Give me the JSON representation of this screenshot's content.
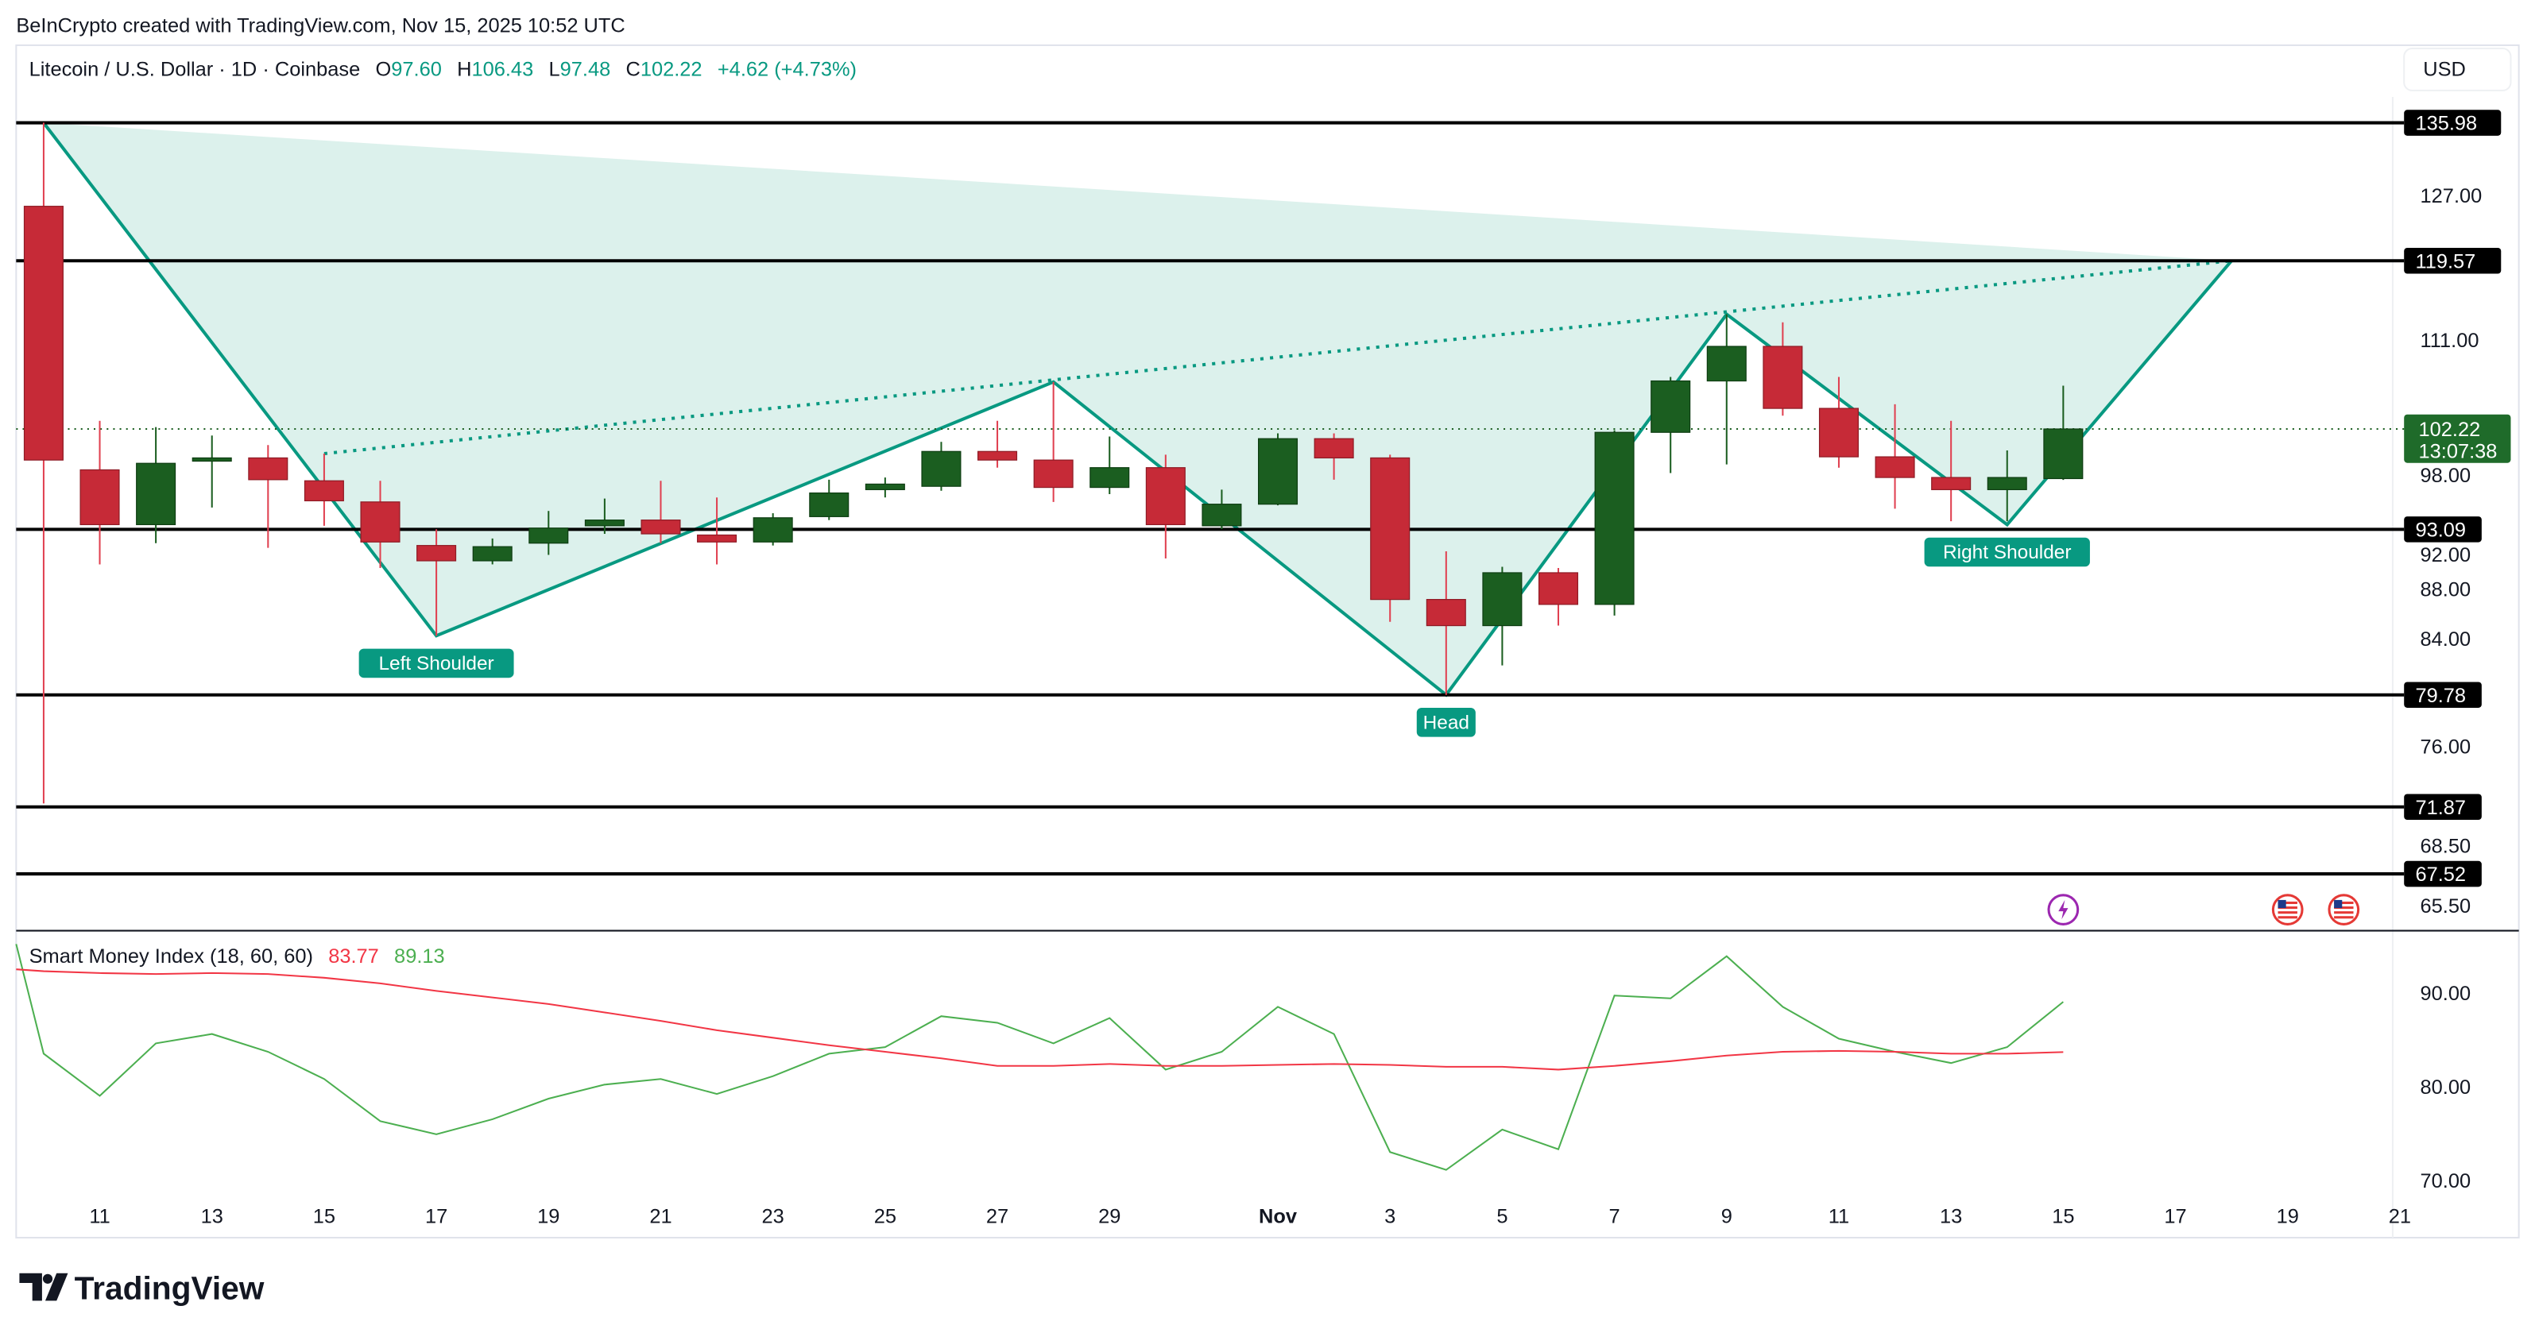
{
  "watermark": "BeInCrypto created with TradingView.com, Nov 15, 2025 10:52 UTC",
  "legend": {
    "symbol": "Litecoin / U.S. Dollar · 1D · Coinbase",
    "o_label": "O",
    "o": "97.60",
    "h_label": "H",
    "h": "106.43",
    "l_label": "L",
    "l": "97.48",
    "c_label": "C",
    "c": "102.22",
    "change": "+4.62 (+4.73%)"
  },
  "currency_button": "USD",
  "last_price": {
    "value": "102.22",
    "countdown": "13:07:38"
  },
  "brand": "TradingView",
  "colors": {
    "up": "#1b5e20",
    "down": "#c62a37",
    "pattern": "#089981",
    "pattern_fill": "#d8f0ea",
    "smi": "#4caf50",
    "signal": "#f23645"
  },
  "chart_data": [
    {
      "type": "candlestick",
      "y_scale": "log",
      "ylim": [
        64,
        140
      ],
      "y_ticks": [
        "127.00",
        "111.00",
        "98.00",
        "92.00",
        "88.00",
        "84.00",
        "76.00",
        "68.50",
        "65.50"
      ],
      "x_ticks": [
        "11",
        "13",
        "15",
        "17",
        "19",
        "21",
        "23",
        "25",
        "27",
        "29",
        "Nov",
        "3",
        "5",
        "7",
        "9",
        "11",
        "13",
        "15",
        "17",
        "19",
        "21"
      ],
      "x_tick_dates": [
        "2025-10-11",
        "2025-10-13",
        "2025-10-15",
        "2025-10-17",
        "2025-10-19",
        "2025-10-21",
        "2025-10-23",
        "2025-10-25",
        "2025-10-27",
        "2025-10-29",
        "2025-11-01",
        "2025-11-03",
        "2025-11-05",
        "2025-11-07",
        "2025-11-09",
        "2025-11-11",
        "2025-11-13",
        "2025-11-15",
        "2025-11-17",
        "2025-11-19",
        "2025-11-21"
      ],
      "candles": [
        {
          "d": "2025-10-10",
          "o": 125.8,
          "h": 136.0,
          "l": 72.1,
          "c": 99.3
        },
        {
          "d": "2025-10-11",
          "o": 98.4,
          "h": 103.0,
          "l": 90.1,
          "c": 93.5
        },
        {
          "d": "2025-10-12",
          "o": 93.5,
          "h": 102.4,
          "l": 91.9,
          "c": 99.0
        },
        {
          "d": "2025-10-13",
          "o": 99.2,
          "h": 101.6,
          "l": 95.0,
          "c": 99.5
        },
        {
          "d": "2025-10-14",
          "o": 99.5,
          "h": 100.7,
          "l": 91.5,
          "c": 97.5
        },
        {
          "d": "2025-10-15",
          "o": 97.4,
          "h": 99.9,
          "l": 93.4,
          "c": 95.6
        },
        {
          "d": "2025-10-16",
          "o": 95.5,
          "h": 97.4,
          "l": 89.8,
          "c": 92.0
        },
        {
          "d": "2025-10-17",
          "o": 91.7,
          "h": 93.1,
          "l": 84.3,
          "c": 90.4
        },
        {
          "d": "2025-10-18",
          "o": 90.4,
          "h": 92.3,
          "l": 90.1,
          "c": 91.6
        },
        {
          "d": "2025-10-19",
          "o": 91.9,
          "h": 94.7,
          "l": 90.9,
          "c": 93.2
        },
        {
          "d": "2025-10-20",
          "o": 93.4,
          "h": 95.8,
          "l": 92.7,
          "c": 93.9
        },
        {
          "d": "2025-10-21",
          "o": 93.9,
          "h": 97.4,
          "l": 91.9,
          "c": 92.7
        },
        {
          "d": "2025-10-22",
          "o": 92.6,
          "h": 95.9,
          "l": 90.1,
          "c": 92.0
        },
        {
          "d": "2025-10-23",
          "o": 92.0,
          "h": 94.5,
          "l": 91.7,
          "c": 94.1
        },
        {
          "d": "2025-10-24",
          "o": 94.2,
          "h": 97.5,
          "l": 93.9,
          "c": 96.3
        },
        {
          "d": "2025-10-25",
          "o": 96.6,
          "h": 97.7,
          "l": 95.9,
          "c": 97.1
        },
        {
          "d": "2025-10-26",
          "o": 96.9,
          "h": 101.0,
          "l": 96.5,
          "c": 100.1
        },
        {
          "d": "2025-10-27",
          "o": 100.1,
          "h": 103.0,
          "l": 98.6,
          "c": 99.3
        },
        {
          "d": "2025-10-28",
          "o": 99.3,
          "h": 106.8,
          "l": 95.5,
          "c": 96.8
        },
        {
          "d": "2025-10-29",
          "o": 96.8,
          "h": 101.5,
          "l": 96.2,
          "c": 98.6
        },
        {
          "d": "2025-10-30",
          "o": 98.6,
          "h": 99.8,
          "l": 90.6,
          "c": 93.5
        },
        {
          "d": "2025-10-31",
          "o": 93.4,
          "h": 96.6,
          "l": 93.1,
          "c": 95.3
        },
        {
          "d": "2025-11-01",
          "o": 95.3,
          "h": 101.8,
          "l": 95.2,
          "c": 101.3
        },
        {
          "d": "2025-11-02",
          "o": 101.3,
          "h": 101.8,
          "l": 97.5,
          "c": 99.5
        },
        {
          "d": "2025-11-03",
          "o": 99.5,
          "h": 99.8,
          "l": 85.4,
          "c": 87.2
        },
        {
          "d": "2025-11-04",
          "o": 87.2,
          "h": 91.2,
          "l": 79.78,
          "c": 85.1
        },
        {
          "d": "2025-11-05",
          "o": 85.1,
          "h": 89.9,
          "l": 82.0,
          "c": 89.4
        },
        {
          "d": "2025-11-06",
          "o": 89.4,
          "h": 89.8,
          "l": 85.1,
          "c": 86.8
        },
        {
          "d": "2025-11-07",
          "o": 86.8,
          "h": 102.1,
          "l": 85.9,
          "c": 101.9
        },
        {
          "d": "2025-11-08",
          "o": 101.9,
          "h": 107.3,
          "l": 98.1,
          "c": 106.9
        },
        {
          "d": "2025-11-09",
          "o": 106.9,
          "h": 113.75,
          "l": 98.9,
          "c": 110.4
        },
        {
          "d": "2025-11-10",
          "o": 110.4,
          "h": 112.9,
          "l": 103.5,
          "c": 104.2
        },
        {
          "d": "2025-11-11",
          "o": 104.2,
          "h": 107.3,
          "l": 98.6,
          "c": 99.6
        },
        {
          "d": "2025-11-12",
          "o": 99.6,
          "h": 104.6,
          "l": 94.9,
          "c": 97.7
        },
        {
          "d": "2025-11-13",
          "o": 97.7,
          "h": 103.0,
          "l": 93.8,
          "c": 96.6
        },
        {
          "d": "2025-11-14",
          "o": 96.6,
          "h": 100.2,
          "l": 93.8,
          "c": 97.7
        },
        {
          "d": "2025-11-15",
          "o": 97.6,
          "h": 106.43,
          "l": 97.48,
          "c": 102.22
        }
      ],
      "levels": [
        "135.98",
        "119.57",
        "93.09",
        "79.78",
        "71.87",
        "67.52"
      ],
      "pattern": {
        "points": [
          {
            "d": "2025-10-10",
            "p": 135.98
          },
          {
            "d": "2025-10-17",
            "p": 84.3
          },
          {
            "d": "2025-10-28",
            "p": 106.8
          },
          {
            "d": "2025-11-04",
            "p": 79.78
          },
          {
            "d": "2025-11-09",
            "p": 113.75
          },
          {
            "d": "2025-11-14",
            "p": 93.5
          },
          {
            "d": "2025-11-18",
            "p": 119.57
          }
        ],
        "neckline": [
          {
            "d": "2025-10-15",
            "p": 99.9
          },
          {
            "d": "2025-11-18",
            "p": 119.57
          }
        ],
        "labels": [
          {
            "text": "Left Shoulder",
            "d": "2025-10-17",
            "p": 84.3
          },
          {
            "text": "Head",
            "d": "2025-11-04",
            "p": 79.78
          },
          {
            "text": "Right Shoulder",
            "d": "2025-11-14",
            "p": 93.5
          }
        ]
      },
      "events": [
        {
          "icon": "lightning-icon",
          "d": "2025-11-15"
        },
        {
          "icon": "us-flag-icon",
          "d": "2025-11-19"
        },
        {
          "icon": "us-flag-icon",
          "d": "2025-11-20"
        }
      ]
    },
    {
      "type": "line",
      "title": "Smart Money Index (18, 60, 60)",
      "values_shown": {
        "signal": "83.77",
        "smi": "89.13"
      },
      "ylim": [
        67,
        97
      ],
      "y_ticks": [
        "90.00",
        "80.00",
        "70.00"
      ],
      "series": [
        {
          "key": "smi",
          "values": [
            83.6,
            79.1,
            84.7,
            85.7,
            83.8,
            80.9,
            76.4,
            75.0,
            76.6,
            78.8,
            80.3,
            80.9,
            79.3,
            81.2,
            83.6,
            84.3,
            87.6,
            86.9,
            84.7,
            87.4,
            81.9,
            83.8,
            88.6,
            85.7,
            73.1,
            71.2,
            75.5,
            73.4,
            89.8,
            89.5,
            94.0,
            88.6,
            85.2,
            83.8,
            82.6,
            84.3,
            89.13
          ]
        },
        {
          "key": "signal",
          "values": [
            92.4,
            92.2,
            92.1,
            92.2,
            92.1,
            91.7,
            91.1,
            90.3,
            89.6,
            88.9,
            88.0,
            87.1,
            86.1,
            85.3,
            84.5,
            83.8,
            83.1,
            82.3,
            82.3,
            82.5,
            82.3,
            82.3,
            82.4,
            82.5,
            82.4,
            82.2,
            82.2,
            81.9,
            82.3,
            82.8,
            83.4,
            83.8,
            83.9,
            83.8,
            83.6,
            83.6,
            83.77
          ]
        }
      ]
    }
  ]
}
